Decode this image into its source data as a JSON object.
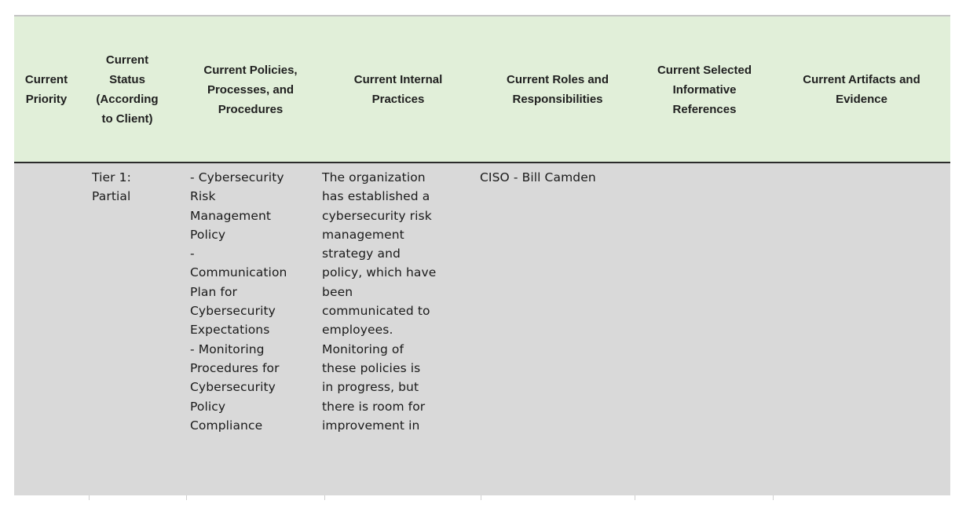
{
  "headers": [
    "Current\nPriority",
    "Current\nStatus\n(According\nto Client)",
    "Current Policies,\nProcesses, and\nProcedures",
    "Current Internal\nPractices",
    "Current Roles and\nResponsibilities",
    "Current Selected\nInformative\nReferences",
    "Current Artifacts and\nEvidence"
  ],
  "row": {
    "priority": "",
    "status": "Tier 1:\nPartial",
    "policies": "- Cybersecurity\nRisk\nManagement\nPolicy\n-\nCommunication\nPlan for\nCybersecurity\nExpectations\n- Monitoring\nProcedures for\nCybersecurity\nPolicy\nCompliance",
    "practices": "The organization\nhas established a\ncybersecurity risk\nmanagement\nstrategy and\npolicy, which have\nbeen\ncommunicated to\nemployees.\nMonitoring of\nthese policies is\nin progress, but\nthere is room for\nimprovement in",
    "roles": "CISO - Bill Camden",
    "references": "",
    "artifacts": ""
  },
  "colors": {
    "header_bg": "#e1efd9",
    "body_bg": "#d9d9d9"
  }
}
